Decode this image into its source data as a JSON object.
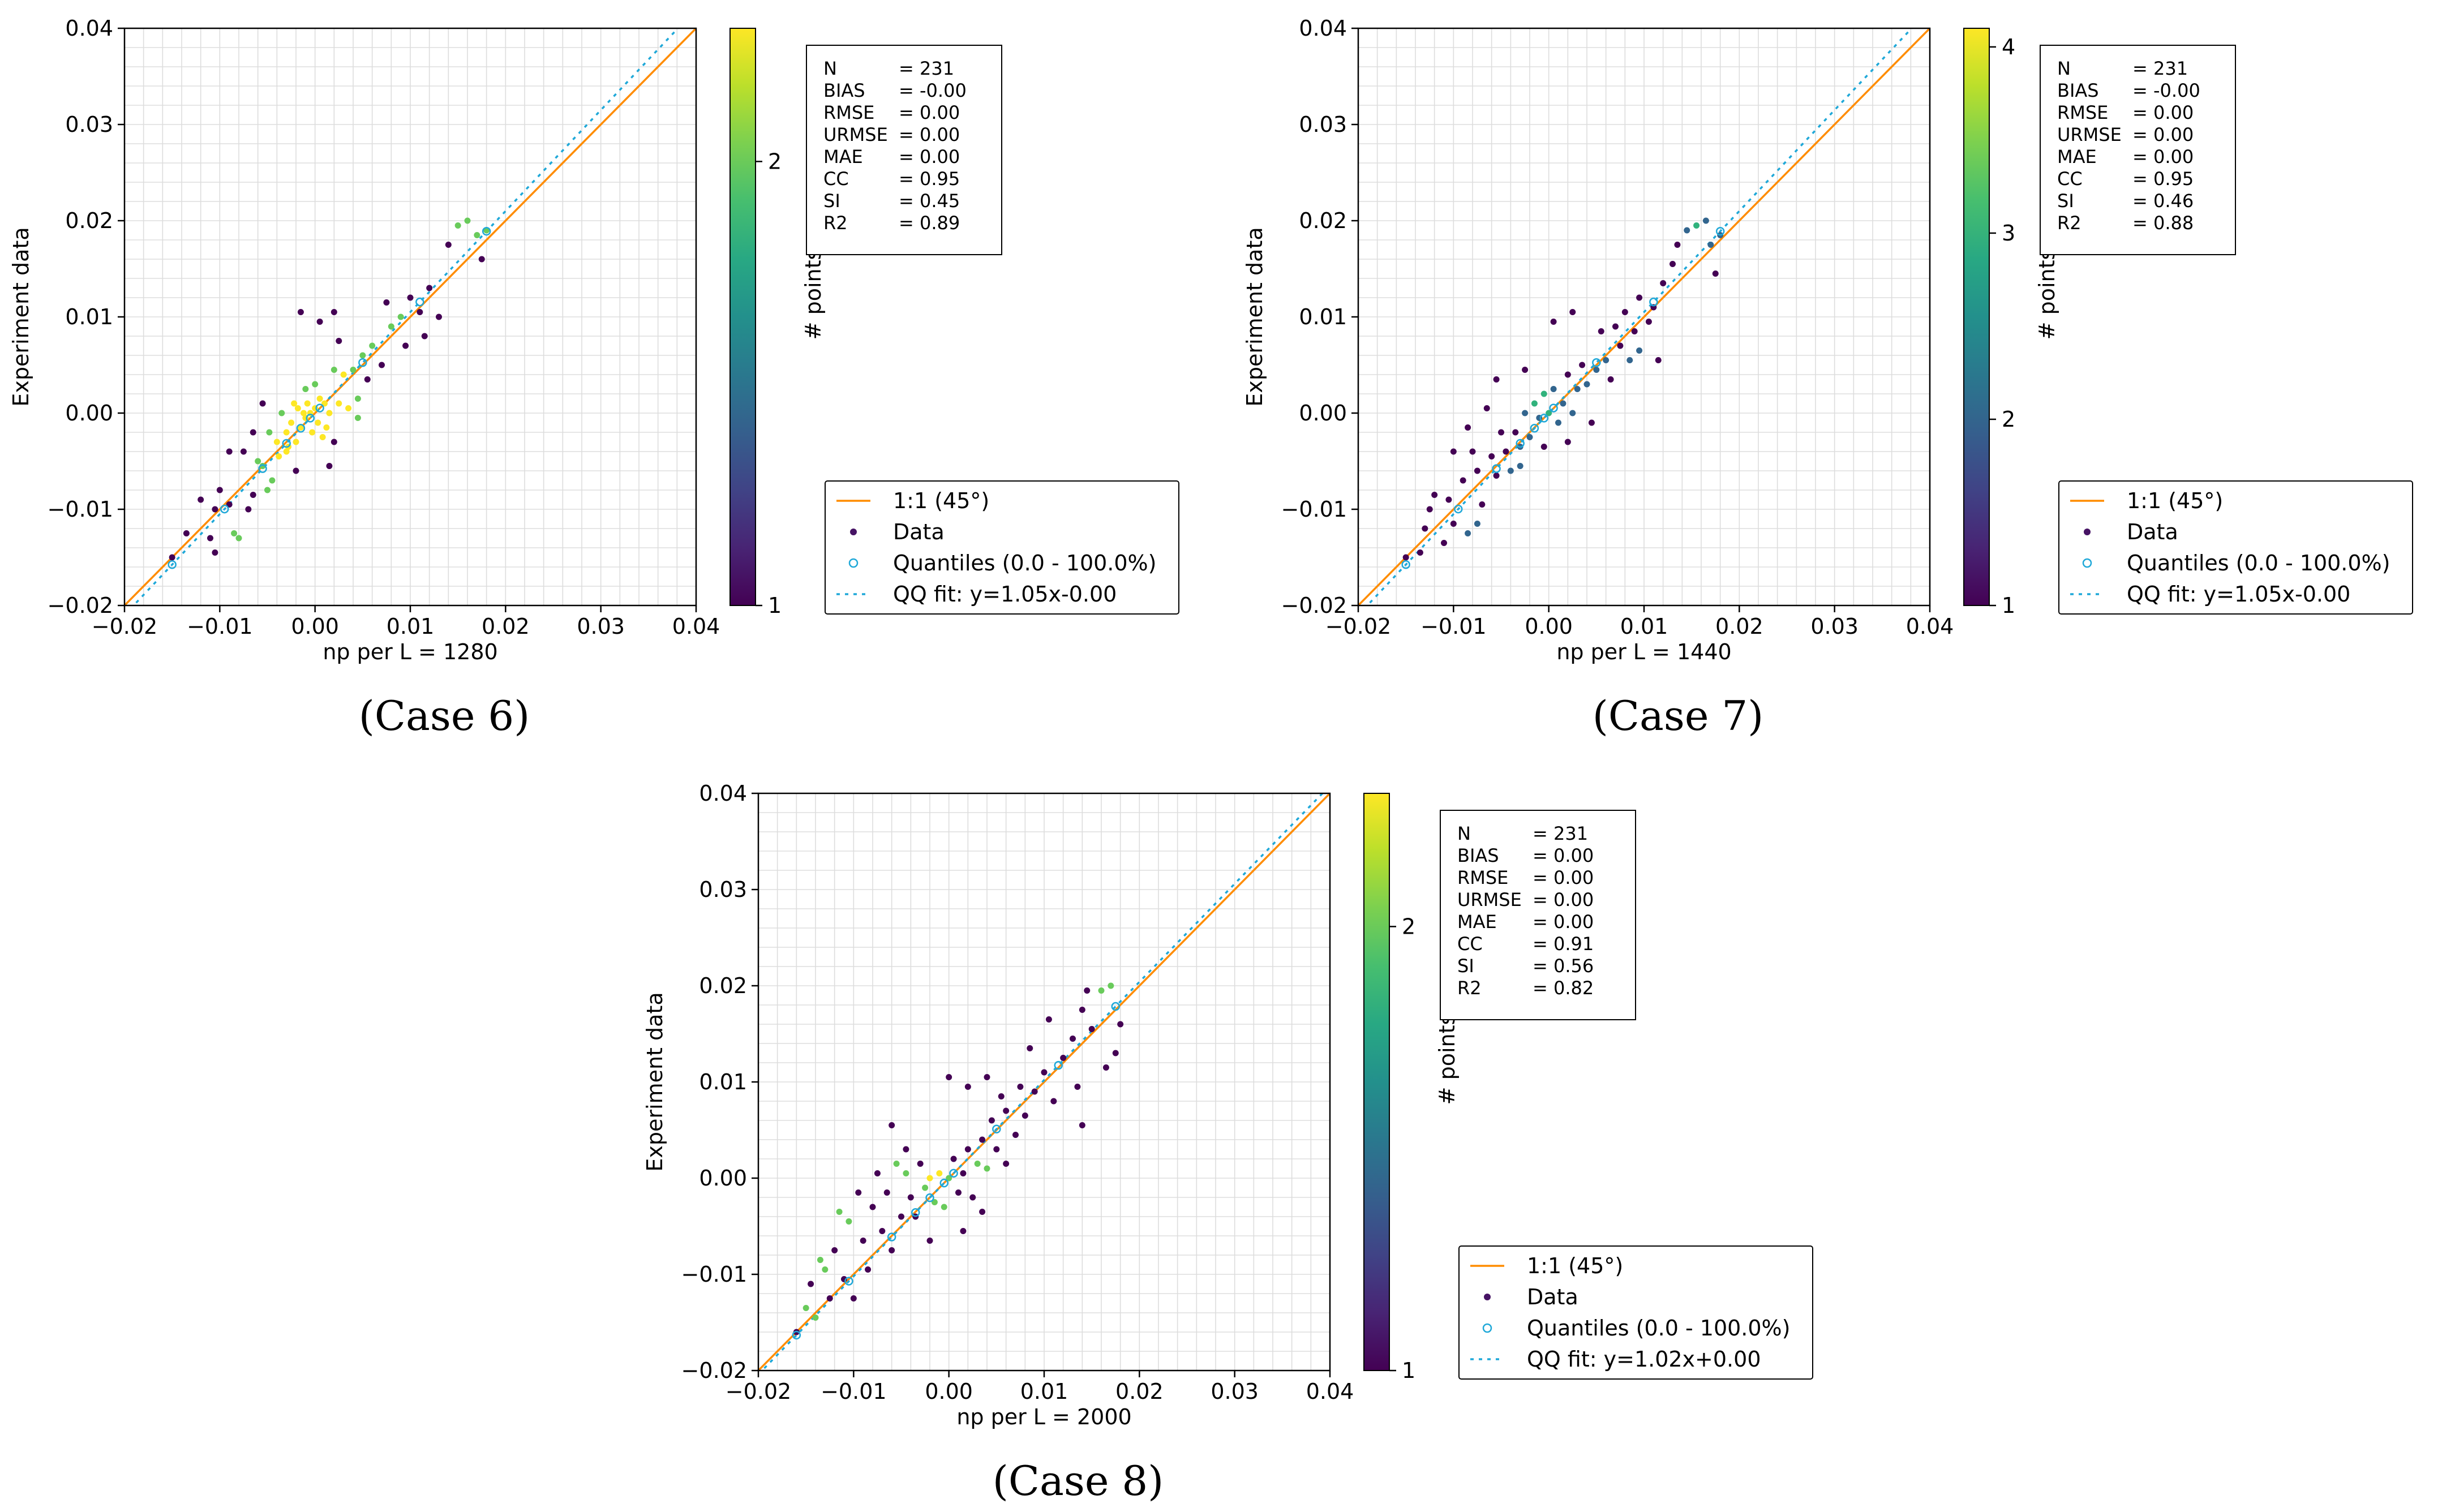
{
  "chart_data": [
    {
      "type": "scatter",
      "caption": "(Case 6)",
      "xlabel": "np per L = 1280",
      "ylabel": "Experiment data",
      "xlim": [
        -0.02,
        0.04
      ],
      "ylim": [
        -0.02,
        0.04
      ],
      "xticks": [
        "−0.02",
        "−0.01",
        "0.00",
        "0.01",
        "0.02",
        "0.03",
        "0.04"
      ],
      "yticks": [
        "−0.02",
        "−0.01",
        "0.00",
        "0.01",
        "0.02",
        "0.03",
        "0.04"
      ],
      "colorbar": {
        "label": "# points",
        "min": 1,
        "max": 2.3,
        "ticks": [
          "1",
          "2"
        ],
        "tick_values": [
          1,
          2
        ]
      },
      "stats": [
        {
          "name": "N",
          "value": "231"
        },
        {
          "name": "BIAS",
          "value": "-0.00"
        },
        {
          "name": "RMSE",
          "value": "0.00"
        },
        {
          "name": "URMSE",
          "value": "0.00"
        },
        {
          "name": "MAE",
          "value": "0.00"
        },
        {
          "name": "CC",
          "value": "0.95"
        },
        {
          "name": "SI",
          "value": "0.45"
        },
        {
          "name": "R2",
          "value": "0.89"
        }
      ],
      "legend": [
        {
          "kind": "line",
          "label": "1:1 (45°)"
        },
        {
          "kind": "dot",
          "label": "Data"
        },
        {
          "kind": "ring",
          "label": "Quantiles (0.0 - 100.0%)"
        },
        {
          "kind": "dash",
          "label": "QQ fit: y=1.05x-0.00"
        }
      ],
      "qq_fit": {
        "slope": 1.05,
        "intercept": 0.0
      },
      "quantiles": [
        -0.015,
        -0.0095,
        -0.0055,
        -0.003,
        -0.0015,
        -0.0005,
        0.0005,
        0.005,
        0.011,
        0.018
      ],
      "points": [
        [
          -0.015,
          -0.015
        ],
        [
          -0.0135,
          -0.0125
        ],
        [
          -0.012,
          -0.009
        ],
        [
          -0.011,
          -0.013
        ],
        [
          -0.0105,
          -0.01
        ],
        [
          -0.01,
          -0.008
        ],
        [
          -0.009,
          -0.0095
        ],
        [
          -0.008,
          -0.013
        ],
        [
          -0.0075,
          -0.004
        ],
        [
          -0.007,
          -0.01
        ],
        [
          -0.0065,
          -0.0085
        ],
        [
          -0.006,
          -0.005
        ],
        [
          -0.0055,
          -0.0055
        ],
        [
          -0.005,
          -0.008
        ],
        [
          -0.0048,
          -0.002
        ],
        [
          -0.0045,
          -0.007
        ],
        [
          -0.004,
          -0.003
        ],
        [
          -0.0038,
          -0.0045
        ],
        [
          -0.0035,
          0.0
        ],
        [
          -0.003,
          -0.002
        ],
        [
          -0.003,
          -0.004
        ],
        [
          -0.0028,
          -0.0035
        ],
        [
          -0.0025,
          -0.001
        ],
        [
          -0.0022,
          0.001
        ],
        [
          -0.002,
          -0.003
        ],
        [
          -0.0018,
          0.0005
        ],
        [
          -0.0015,
          -0.0015
        ],
        [
          -0.0012,
          0.0
        ],
        [
          -0.001,
          0.0025
        ],
        [
          -0.001,
          -0.0005
        ],
        [
          -0.0008,
          0.001
        ],
        [
          -0.0005,
          0.0
        ],
        [
          -0.0003,
          -0.002
        ],
        [
          0.0,
          0.0005
        ],
        [
          0.0,
          0.003
        ],
        [
          0.0003,
          -0.001
        ],
        [
          0.0005,
          0.0015
        ],
        [
          0.0008,
          -0.0025
        ],
        [
          0.001,
          0.001
        ],
        [
          0.0012,
          -0.0015
        ],
        [
          0.0015,
          0.0
        ],
        [
          0.002,
          0.0045
        ],
        [
          0.002,
          -0.003
        ],
        [
          0.0025,
          0.001
        ],
        [
          0.003,
          0.004
        ],
        [
          0.0035,
          0.0005
        ],
        [
          0.004,
          0.0045
        ],
        [
          0.0045,
          0.0015
        ],
        [
          0.005,
          0.006
        ],
        [
          0.0055,
          0.0035
        ],
        [
          0.006,
          0.007
        ],
        [
          0.007,
          0.005
        ],
        [
          0.008,
          0.009
        ],
        [
          0.009,
          0.01
        ],
        [
          0.0095,
          0.007
        ],
        [
          0.01,
          0.012
        ],
        [
          0.011,
          0.0105
        ],
        [
          0.0115,
          0.008
        ],
        [
          0.012,
          0.013
        ],
        [
          0.013,
          0.01
        ],
        [
          0.014,
          0.0175
        ],
        [
          0.015,
          0.0195
        ],
        [
          0.016,
          0.02
        ],
        [
          0.017,
          0.0185
        ],
        [
          0.0175,
          0.016
        ],
        [
          0.018,
          0.019
        ],
        [
          -0.0015,
          0.0105
        ],
        [
          0.0005,
          0.0095
        ],
        [
          0.002,
          0.0105
        ],
        [
          -0.0055,
          0.001
        ],
        [
          -0.0065,
          -0.002
        ],
        [
          0.0015,
          -0.0055
        ],
        [
          0.0025,
          0.0075
        ],
        [
          -0.0085,
          -0.0125
        ],
        [
          -0.0105,
          -0.0145
        ],
        [
          -0.009,
          -0.004
        ],
        [
          0.0075,
          0.0115
        ],
        [
          0.0045,
          -0.0005
        ],
        [
          -0.002,
          -0.006
        ]
      ]
    },
    {
      "type": "scatter",
      "caption": "(Case 7)",
      "xlabel": "np per L = 1440",
      "ylabel": "Experiment data",
      "xlim": [
        -0.02,
        0.04
      ],
      "ylim": [
        -0.02,
        0.04
      ],
      "xticks": [
        "−0.02",
        "−0.01",
        "0.00",
        "0.01",
        "0.02",
        "0.03",
        "0.04"
      ],
      "yticks": [
        "−0.02",
        "−0.01",
        "0.00",
        "0.01",
        "0.02",
        "0.03",
        "0.04"
      ],
      "colorbar": {
        "label": "# points",
        "min": 1,
        "max": 4.1,
        "ticks": [
          "1",
          "2",
          "3",
          "4"
        ],
        "tick_values": [
          1,
          2,
          3,
          4
        ]
      },
      "stats": [
        {
          "name": "N",
          "value": "231"
        },
        {
          "name": "BIAS",
          "value": "-0.00"
        },
        {
          "name": "RMSE",
          "value": "0.00"
        },
        {
          "name": "URMSE",
          "value": "0.00"
        },
        {
          "name": "MAE",
          "value": "0.00"
        },
        {
          "name": "CC",
          "value": "0.95"
        },
        {
          "name": "SI",
          "value": "0.46"
        },
        {
          "name": "R2",
          "value": "0.88"
        }
      ],
      "legend": [
        {
          "kind": "line",
          "label": "1:1 (45°)"
        },
        {
          "kind": "dot",
          "label": "Data"
        },
        {
          "kind": "ring",
          "label": "Quantiles (0.0 - 100.0%)"
        },
        {
          "kind": "dash",
          "label": "QQ fit: y=1.05x-0.00"
        }
      ],
      "qq_fit": {
        "slope": 1.05,
        "intercept": 0.0
      },
      "quantiles": [
        -0.015,
        -0.0095,
        -0.0055,
        -0.003,
        -0.0015,
        -0.0005,
        0.0005,
        0.005,
        0.011,
        0.018
      ],
      "points": [
        [
          -0.015,
          -0.015
        ],
        [
          -0.013,
          -0.012
        ],
        [
          -0.0125,
          -0.01
        ],
        [
          -0.012,
          -0.0085
        ],
        [
          -0.011,
          -0.0135
        ],
        [
          -0.0105,
          -0.009
        ],
        [
          -0.01,
          -0.0115
        ],
        [
          -0.009,
          -0.007
        ],
        [
          -0.0085,
          -0.0125
        ],
        [
          -0.008,
          -0.004
        ],
        [
          -0.0075,
          -0.006
        ],
        [
          -0.007,
          -0.0095
        ],
        [
          -0.006,
          -0.0045
        ],
        [
          -0.0055,
          -0.0065
        ],
        [
          -0.005,
          -0.002
        ],
        [
          -0.0045,
          -0.004
        ],
        [
          -0.004,
          -0.006
        ],
        [
          -0.0035,
          -0.002
        ],
        [
          -0.003,
          -0.0035
        ],
        [
          -0.0025,
          0.0
        ],
        [
          -0.002,
          -0.0025
        ],
        [
          -0.0015,
          0.001
        ],
        [
          -0.001,
          -0.0005
        ],
        [
          -0.0005,
          0.002
        ],
        [
          0.0,
          0.0
        ],
        [
          0.0005,
          0.0025
        ],
        [
          0.001,
          -0.001
        ],
        [
          0.0015,
          0.001
        ],
        [
          0.002,
          0.004
        ],
        [
          0.0025,
          0.0
        ],
        [
          0.003,
          0.0025
        ],
        [
          0.0035,
          0.005
        ],
        [
          0.004,
          0.003
        ],
        [
          0.005,
          0.0045
        ],
        [
          0.0055,
          0.0085
        ],
        [
          0.006,
          0.0055
        ],
        [
          0.007,
          0.009
        ],
        [
          0.0075,
          0.007
        ],
        [
          0.008,
          0.0105
        ],
        [
          0.009,
          0.0085
        ],
        [
          0.0095,
          0.012
        ],
        [
          0.0105,
          0.0095
        ],
        [
          0.011,
          0.011
        ],
        [
          0.012,
          0.0135
        ],
        [
          0.013,
          0.0155
        ],
        [
          0.0135,
          0.0175
        ],
        [
          0.0145,
          0.019
        ],
        [
          0.0155,
          0.0195
        ],
        [
          0.0165,
          0.02
        ],
        [
          0.017,
          0.0175
        ],
        [
          0.0175,
          0.0145
        ],
        [
          0.018,
          0.0185
        ],
        [
          0.0115,
          0.0055
        ],
        [
          0.0095,
          0.0065
        ],
        [
          0.0005,
          0.0095
        ],
        [
          0.0025,
          0.0105
        ],
        [
          -0.0025,
          0.0045
        ],
        [
          -0.0055,
          0.0035
        ],
        [
          -0.0065,
          0.0005
        ],
        [
          -0.01,
          -0.004
        ],
        [
          -0.0085,
          -0.0015
        ],
        [
          0.002,
          -0.003
        ],
        [
          0.0045,
          -0.001
        ],
        [
          -0.0005,
          -0.0035
        ],
        [
          -0.003,
          -0.0055
        ],
        [
          -0.0075,
          -0.0115
        ],
        [
          -0.0135,
          -0.0145
        ],
        [
          0.0065,
          0.0035
        ],
        [
          0.0085,
          0.0055
        ]
      ]
    },
    {
      "type": "scatter",
      "caption": "(Case 8)",
      "xlabel": "np per L = 2000",
      "ylabel": "Experiment data",
      "xlim": [
        -0.02,
        0.04
      ],
      "ylim": [
        -0.02,
        0.04
      ],
      "xticks": [
        "−0.02",
        "−0.01",
        "0.00",
        "0.01",
        "0.02",
        "0.03",
        "0.04"
      ],
      "yticks": [
        "−0.02",
        "−0.01",
        "0.00",
        "0.01",
        "0.02",
        "0.03",
        "0.04"
      ],
      "colorbar": {
        "label": "# points",
        "min": 1,
        "max": 2.3,
        "ticks": [
          "1",
          "2"
        ],
        "tick_values": [
          1,
          2
        ]
      },
      "stats": [
        {
          "name": "N",
          "value": "231"
        },
        {
          "name": "BIAS",
          "value": "0.00"
        },
        {
          "name": "RMSE",
          "value": "0.00"
        },
        {
          "name": "URMSE",
          "value": "0.00"
        },
        {
          "name": "MAE",
          "value": "0.00"
        },
        {
          "name": "CC",
          "value": "0.91"
        },
        {
          "name": "SI",
          "value": "0.56"
        },
        {
          "name": "R2",
          "value": "0.82"
        }
      ],
      "legend": [
        {
          "kind": "line",
          "label": "1:1 (45°)"
        },
        {
          "kind": "dot",
          "label": "Data"
        },
        {
          "kind": "ring",
          "label": "Quantiles (0.0 - 100.0%)"
        },
        {
          "kind": "dash",
          "label": "QQ fit: y=1.02x+0.00"
        }
      ],
      "qq_fit": {
        "slope": 1.02,
        "intercept": 0.0
      },
      "quantiles": [
        -0.016,
        -0.0105,
        -0.006,
        -0.0035,
        -0.002,
        -0.0005,
        0.0005,
        0.005,
        0.0115,
        0.0175
      ],
      "points": [
        [
          -0.016,
          -0.016
        ],
        [
          -0.015,
          -0.0135
        ],
        [
          -0.0145,
          -0.011
        ],
        [
          -0.014,
          -0.0145
        ],
        [
          -0.013,
          -0.0095
        ],
        [
          -0.0125,
          -0.0125
        ],
        [
          -0.012,
          -0.0075
        ],
        [
          -0.011,
          -0.0105
        ],
        [
          -0.0105,
          -0.0045
        ],
        [
          -0.01,
          -0.0125
        ],
        [
          -0.009,
          -0.0065
        ],
        [
          -0.0085,
          -0.0095
        ],
        [
          -0.008,
          -0.003
        ],
        [
          -0.007,
          -0.0055
        ],
        [
          -0.0065,
          -0.0015
        ],
        [
          -0.006,
          -0.0075
        ],
        [
          -0.0055,
          0.0015
        ],
        [
          -0.005,
          -0.004
        ],
        [
          -0.0045,
          0.0005
        ],
        [
          -0.004,
          -0.002
        ],
        [
          -0.0035,
          -0.004
        ],
        [
          -0.003,
          0.0015
        ],
        [
          -0.0025,
          -0.001
        ],
        [
          -0.002,
          0.0
        ],
        [
          -0.0015,
          -0.0025
        ],
        [
          -0.001,
          0.0005
        ],
        [
          -0.0005,
          -0.003
        ],
        [
          0.0,
          0.0
        ],
        [
          0.0005,
          0.002
        ],
        [
          0.001,
          -0.0015
        ],
        [
          0.0015,
          0.0005
        ],
        [
          0.002,
          0.003
        ],
        [
          0.0025,
          -0.002
        ],
        [
          0.003,
          0.0015
        ],
        [
          0.0035,
          0.004
        ],
        [
          0.004,
          0.001
        ],
        [
          0.0045,
          0.006
        ],
        [
          0.005,
          0.003
        ],
        [
          0.006,
          0.007
        ],
        [
          0.007,
          0.0045
        ],
        [
          0.0075,
          0.0095
        ],
        [
          0.008,
          0.0065
        ],
        [
          0.009,
          0.009
        ],
        [
          0.01,
          0.011
        ],
        [
          0.011,
          0.008
        ],
        [
          0.012,
          0.0125
        ],
        [
          0.013,
          0.0145
        ],
        [
          0.014,
          0.0175
        ],
        [
          0.0145,
          0.0195
        ],
        [
          0.015,
          0.0155
        ],
        [
          0.016,
          0.0195
        ],
        [
          0.017,
          0.02
        ],
        [
          0.0175,
          0.013
        ],
        [
          0.018,
          0.016
        ],
        [
          0.0,
          0.0105
        ],
        [
          0.002,
          0.0095
        ],
        [
          0.004,
          0.0105
        ],
        [
          0.0055,
          0.0085
        ],
        [
          0.0085,
          0.0135
        ],
        [
          0.0135,
          0.0095
        ],
        [
          0.014,
          0.0055
        ],
        [
          0.0105,
          0.0165
        ],
        [
          -0.0045,
          0.003
        ],
        [
          -0.006,
          0.0055
        ],
        [
          -0.0075,
          0.0005
        ],
        [
          -0.0095,
          -0.0015
        ],
        [
          -0.0115,
          -0.0035
        ],
        [
          -0.0135,
          -0.0085
        ],
        [
          0.0015,
          -0.0055
        ],
        [
          0.0035,
          -0.0035
        ],
        [
          -0.002,
          -0.0065
        ],
        [
          0.006,
          0.0015
        ],
        [
          0.0165,
          0.0115
        ]
      ]
    }
  ]
}
